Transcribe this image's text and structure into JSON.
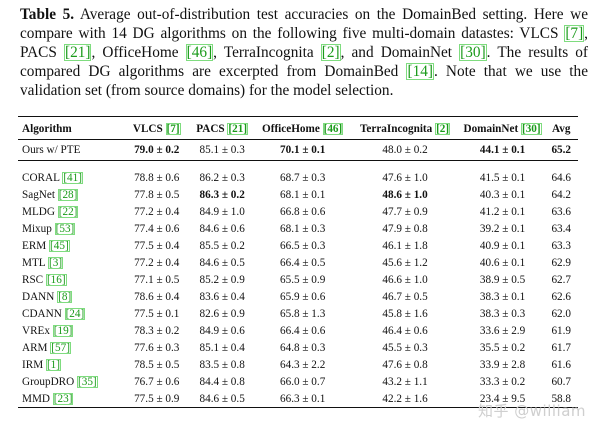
{
  "caption": {
    "label": "Table 5.",
    "intro": " Average out-of-distribution test accuracies on the DomainBed setting. Here we compare with 14 DG algorithms on the following five multi-domain datastes: VLCS ",
    "cite_vlcs": "[7]",
    "t1": ", PACS ",
    "cite_pacs": "[21]",
    "t2": ", OfficeHome ",
    "cite_officehome": "[46]",
    "t3": ", TerraIncognita ",
    "cite_terra": "[2]",
    "t4": ", and DomainNet ",
    "cite_domainnet": "[30]",
    "t5": ". The results of compared DG algorithms are excerpted from DomainBed ",
    "cite_domainbed": "[14]",
    "t6": ". Note that we use the validation set (from source domains) for the model selection."
  },
  "table": {
    "headers": {
      "algorithm": "Algorithm",
      "vlcs": "VLCS",
      "vlcs_cite": "[7]",
      "pacs": "PACS",
      "pacs_cite": "[21]",
      "officehome": "OfficeHome",
      "officehome_cite": "[46]",
      "terra": "TerraIncognita",
      "terra_cite": "[2]",
      "domainnet": "DomainNet",
      "domainnet_cite": "[30]",
      "avg": "Avg"
    },
    "ours": [
      "Ours w/ PTE",
      "79.0 ± 0.2",
      "85.1 ± 0.3",
      "70.1 ± 0.1",
      "48.0 ± 0.2",
      "44.1 ± 0.1",
      "65.2"
    ],
    "rows": [
      {
        "name": "CORAL",
        "cite": "[41]",
        "vals": [
          "78.8 ± 0.6",
          "86.2 ± 0.3",
          "68.7 ± 0.3",
          "47.6 ± 1.0",
          "41.5 ± 0.1",
          "64.6"
        ]
      },
      {
        "name": "SagNet",
        "cite": "[28]",
        "vals": [
          "77.8 ± 0.5",
          "86.3 ± 0.2",
          "68.1 ± 0.1",
          "48.6 ± 1.0",
          "40.3 ± 0.1",
          "64.2"
        ]
      },
      {
        "name": "MLDG",
        "cite": "[22]",
        "vals": [
          "77.2 ± 0.4",
          "84.9 ± 1.0",
          "66.8 ± 0.6",
          "47.7 ± 0.9",
          "41.2 ± 0.1",
          "63.6"
        ]
      },
      {
        "name": "Mixup",
        "cite": "[53]",
        "vals": [
          "77.4 ± 0.6",
          "84.6 ± 0.6",
          "68.1 ± 0.3",
          "47.9 ± 0.8",
          "39.2 ± 0.1",
          "63.4"
        ]
      },
      {
        "name": "ERM",
        "cite": "[45]",
        "vals": [
          "77.5 ± 0.4",
          "85.5 ± 0.2",
          "66.5 ± 0.3",
          "46.1 ± 1.8",
          "40.9 ± 0.1",
          "63.3"
        ]
      },
      {
        "name": "MTL",
        "cite": "[3]",
        "vals": [
          "77.2 ± 0.4",
          "84.6 ± 0.5",
          "66.4 ± 0.5",
          "45.6 ± 1.2",
          "40.6 ± 0.1",
          "62.9"
        ]
      },
      {
        "name": "RSC",
        "cite": "[16]",
        "vals": [
          "77.1 ± 0.5",
          "85.2 ± 0.9",
          "65.5 ± 0.9",
          "46.6 ± 1.0",
          "38.9 ± 0.5",
          "62.7"
        ]
      },
      {
        "name": "DANN",
        "cite": "[8]",
        "vals": [
          "78.6 ± 0.4",
          "83.6 ± 0.4",
          "65.9 ± 0.6",
          "46.7 ± 0.5",
          "38.3 ± 0.1",
          "62.6"
        ]
      },
      {
        "name": "CDANN",
        "cite": "[24]",
        "vals": [
          "77.5 ± 0.1",
          "82.6 ± 0.9",
          "65.8 ± 1.3",
          "45.8 ± 1.6",
          "38.3 ± 0.3",
          "62.0"
        ]
      },
      {
        "name": "VREx",
        "cite": "[19]",
        "vals": [
          "78.3 ± 0.2",
          "84.9 ± 0.6",
          "66.4 ± 0.6",
          "46.4 ± 0.6",
          "33.6 ± 2.9",
          "61.9"
        ]
      },
      {
        "name": "ARM",
        "cite": "[57]",
        "vals": [
          "77.6 ± 0.3",
          "85.1 ± 0.4",
          "64.8 ± 0.3",
          "45.5 ± 0.3",
          "35.5 ± 0.2",
          "61.7"
        ]
      },
      {
        "name": "IRM",
        "cite": "[1]",
        "vals": [
          "78.5 ± 0.5",
          "83.5 ± 0.8",
          "64.3 ± 2.2",
          "47.6 ± 0.8",
          "33.9 ± 2.8",
          "61.6"
        ]
      },
      {
        "name": "GroupDRO",
        "cite": "[35]",
        "vals": [
          "76.7 ± 0.6",
          "84.4 ± 0.8",
          "66.0 ± 0.7",
          "43.2 ± 1.1",
          "33.3 ± 0.2",
          "60.7"
        ]
      },
      {
        "name": "MMD",
        "cite": "[23]",
        "vals": [
          "77.5 ± 0.9",
          "84.6 ± 0.5",
          "66.3 ± 0.1",
          "42.2 ± 1.6",
          "23.4 ± 9.5",
          "58.8"
        ]
      }
    ]
  },
  "watermark": "知乎 @william"
}
